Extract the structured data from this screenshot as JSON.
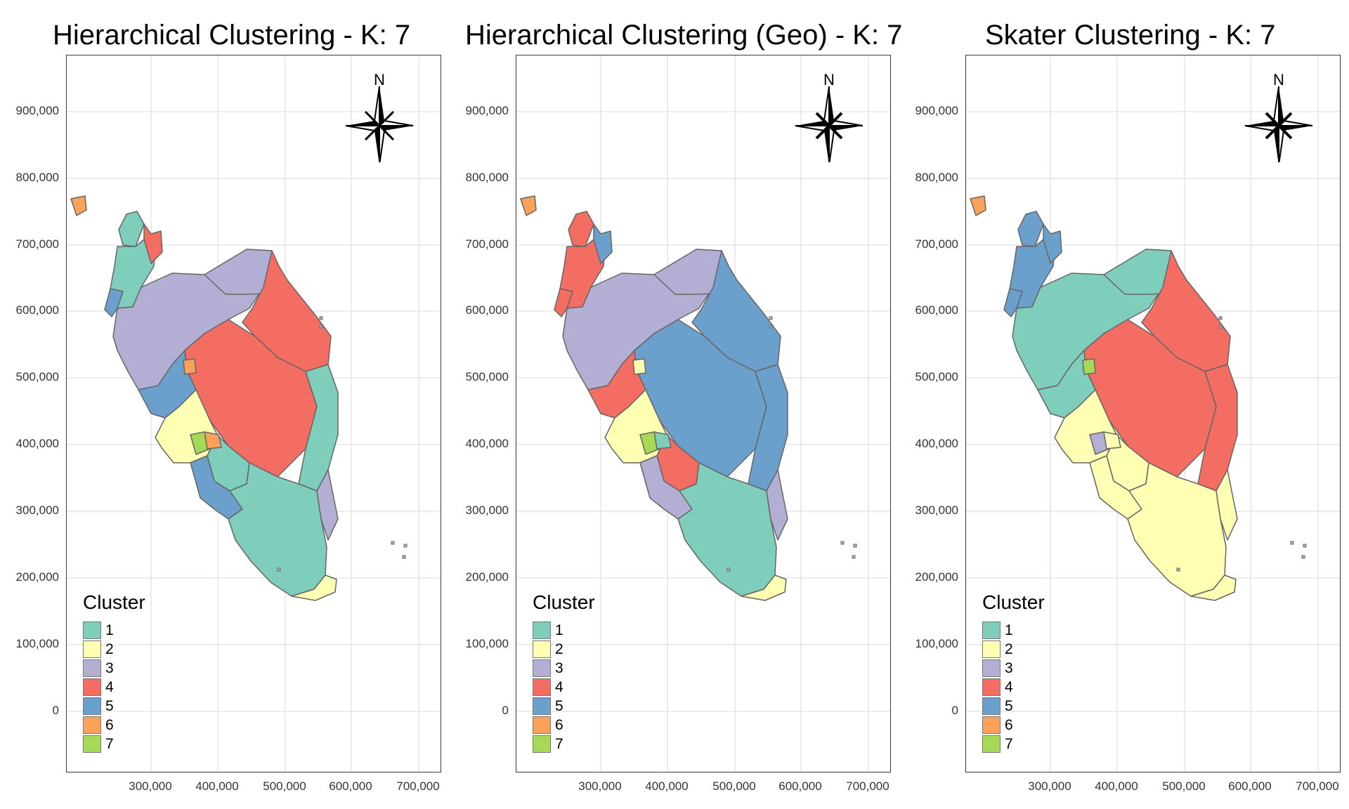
{
  "colors": {
    "1": "#7fcdbb",
    "2": "#ffffb3",
    "3": "#b3aed3",
    "4": "#f46d62",
    "5": "#6b9fcc",
    "6": "#fba25a",
    "7": "#a6d956"
  },
  "axes": {
    "y_ticks": [
      "900,000",
      "800,000",
      "700,000",
      "600,000",
      "500,000",
      "400,000",
      "300,000",
      "200,000",
      "100,000",
      "0"
    ],
    "x_ticks": [
      "300,000",
      "400,000",
      "500,000",
      "600,000",
      "700,000"
    ]
  },
  "legend": {
    "title": "Cluster",
    "labels": [
      "1",
      "2",
      "3",
      "4",
      "5",
      "6",
      "7"
    ]
  },
  "north_label": "N",
  "panels": [
    {
      "title": "Hierarchical Clustering - K: 7",
      "regions": {
        "far_northwest": "1",
        "northwest": "1",
        "north_central": "4",
        "upper_west": "5",
        "west_coast": "3",
        "inland_north": "3",
        "northeast": "4",
        "central": "4",
        "east_coast": "1",
        "west_central": "5",
        "selangor": "2",
        "capital": "7",
        "negeri": "1",
        "central_south": "5",
        "south": "1",
        "east_south": "3",
        "tip": "2",
        "island": "6",
        "inland_pocket": "6",
        "south_pocket": "6"
      }
    },
    {
      "title": "Hierarchical Clustering (Geo) - K: 7",
      "regions": {
        "far_northwest": "4",
        "northwest": "4",
        "north_central": "5",
        "upper_west": "4",
        "west_coast": "3",
        "inland_north": "3",
        "northeast": "5",
        "central": "5",
        "east_coast": "5",
        "west_central": "4",
        "selangor": "2",
        "capital": "7",
        "negeri": "4",
        "central_south": "3",
        "south": "1",
        "east_south": "3",
        "tip": "2",
        "island": "6",
        "inland_pocket": "2",
        "south_pocket": "1"
      }
    },
    {
      "title": "Skater Clustering - K: 7",
      "regions": {
        "far_northwest": "5",
        "northwest": "5",
        "north_central": "5",
        "upper_west": "5",
        "west_coast": "1",
        "inland_north": "1",
        "northeast": "4",
        "central": "4",
        "east_coast": "4",
        "west_central": "1",
        "selangor": "2",
        "capital": "3",
        "negeri": "2",
        "central_south": "2",
        "south": "2",
        "east_south": "2",
        "tip": "2",
        "island": "6",
        "inland_pocket": "7",
        "south_pocket": "2"
      }
    }
  ]
}
